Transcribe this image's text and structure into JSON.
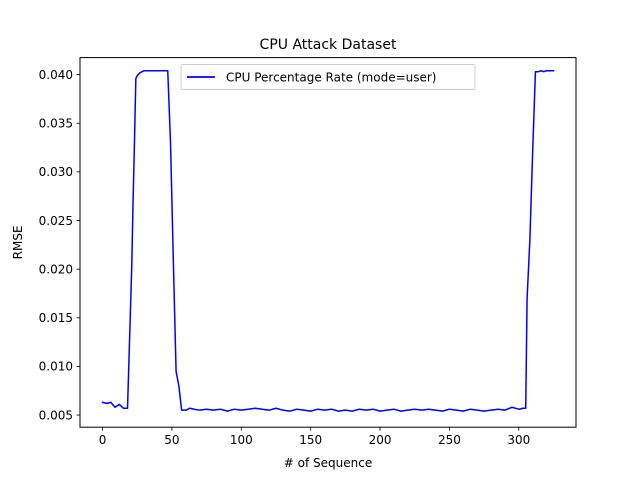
{
  "chart_data": {
    "type": "line",
    "title": "CPU Attack Dataset",
    "xlabel": "# of Sequence",
    "ylabel": "RMSE",
    "xlim": [
      -16.25,
      341.25
    ],
    "ylim": [
      0.00375,
      0.04175
    ],
    "xticks": [
      0,
      50,
      100,
      150,
      200,
      250,
      300
    ],
    "xtick_labels": [
      "0",
      "50",
      "100",
      "150",
      "200",
      "250",
      "300"
    ],
    "yticks": [
      0.005,
      0.01,
      0.015,
      0.02,
      0.025,
      0.03,
      0.035,
      0.04
    ],
    "ytick_labels": [
      "0.005",
      "0.010",
      "0.015",
      "0.020",
      "0.025",
      "0.030",
      "0.035",
      "0.040"
    ],
    "grid": false,
    "legend_position": "top-center",
    "series": [
      {
        "name": "CPU Percentage Rate (mode=user)",
        "color": "#0000ff",
        "x": [
          0,
          3,
          6,
          9,
          12,
          15,
          18,
          21,
          22,
          23,
          24,
          25,
          27,
          30,
          33,
          36,
          39,
          42,
          45,
          47,
          49,
          51,
          53,
          55,
          57,
          60,
          63,
          66,
          70,
          75,
          80,
          85,
          90,
          95,
          100,
          105,
          110,
          115,
          120,
          125,
          130,
          135,
          140,
          145,
          150,
          155,
          160,
          165,
          170,
          175,
          180,
          185,
          190,
          195,
          200,
          205,
          210,
          215,
          220,
          225,
          230,
          235,
          240,
          245,
          250,
          255,
          260,
          265,
          270,
          275,
          280,
          285,
          290,
          295,
          300,
          303,
          305,
          306,
          308,
          310,
          312,
          314,
          316,
          318,
          320,
          322,
          325
        ],
        "y": [
          0.0063,
          0.0062,
          0.0063,
          0.0058,
          0.0061,
          0.0057,
          0.0057,
          0.02,
          0.027,
          0.033,
          0.0396,
          0.0399,
          0.0402,
          0.0404,
          0.0404,
          0.0404,
          0.0404,
          0.0404,
          0.0404,
          0.0404,
          0.033,
          0.021,
          0.0095,
          0.008,
          0.0055,
          0.0055,
          0.0057,
          0.0056,
          0.0055,
          0.0056,
          0.0055,
          0.0056,
          0.0054,
          0.0056,
          0.0055,
          0.0056,
          0.0057,
          0.0056,
          0.0055,
          0.0057,
          0.0055,
          0.0054,
          0.0056,
          0.0055,
          0.0054,
          0.0056,
          0.0055,
          0.0056,
          0.0054,
          0.0055,
          0.0054,
          0.0056,
          0.0055,
          0.0056,
          0.0054,
          0.0055,
          0.0056,
          0.0054,
          0.0055,
          0.0056,
          0.0055,
          0.0056,
          0.0055,
          0.0054,
          0.0056,
          0.0055,
          0.0054,
          0.0056,
          0.0055,
          0.0054,
          0.0055,
          0.0056,
          0.0055,
          0.0058,
          0.0056,
          0.0057,
          0.0057,
          0.017,
          0.023,
          0.032,
          0.0403,
          0.0403,
          0.0404,
          0.0403,
          0.0404,
          0.0404,
          0.0404
        ]
      }
    ]
  }
}
